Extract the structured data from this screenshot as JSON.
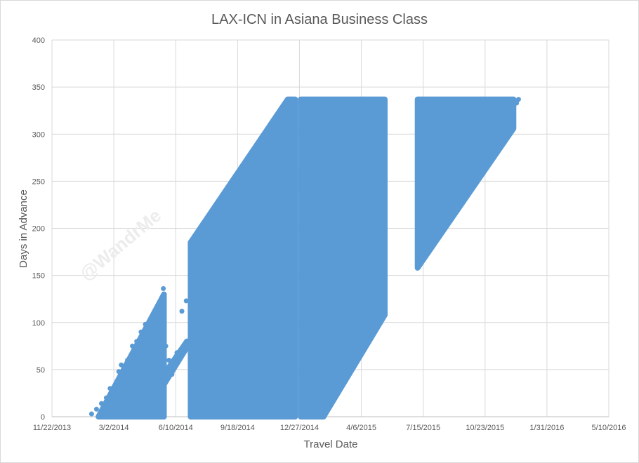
{
  "chart_data": {
    "type": "scatter",
    "title": "LAX-ICN in Asiana Business Class",
    "xlabel": "Travel Date",
    "ylabel": "Days in Advance",
    "watermark": "@WandrMe",
    "x_axis": {
      "type": "date",
      "min": "2013-11-22",
      "max": "2016-05-10",
      "ticks": [
        {
          "date": "2013-11-22",
          "label": "11/22/2013"
        },
        {
          "date": "2014-03-02",
          "label": "3/2/2014"
        },
        {
          "date": "2014-06-10",
          "label": "6/10/2014"
        },
        {
          "date": "2014-09-18",
          "label": "9/18/2014"
        },
        {
          "date": "2014-12-27",
          "label": "12/27/2014"
        },
        {
          "date": "2015-04-06",
          "label": "4/6/2015"
        },
        {
          "date": "2015-07-15",
          "label": "7/15/2015"
        },
        {
          "date": "2015-10-23",
          "label": "10/23/2015"
        },
        {
          "date": "2016-01-31",
          "label": "1/31/2016"
        },
        {
          "date": "2016-05-10",
          "label": "5/10/2016"
        }
      ]
    },
    "y_axis": {
      "min": 0,
      "max": 400,
      "ticks": [
        0,
        50,
        100,
        150,
        200,
        250,
        300,
        350,
        400
      ]
    },
    "grid": true,
    "legend": "none",
    "series_color": "#5b9bd5",
    "regions": [
      {
        "name": "main-parallelogram",
        "vertices": [
          [
            "2014-12-29",
            0
          ],
          [
            "2015-02-04",
            0
          ],
          [
            "2015-05-14",
            108
          ],
          [
            "2015-05-14",
            337
          ],
          [
            "2014-12-29",
            337
          ]
        ]
      },
      {
        "name": "late-2015-band",
        "vertices": [
          [
            "2015-07-06",
            158
          ],
          [
            "2015-07-06",
            337
          ],
          [
            "2015-12-08",
            337
          ],
          [
            "2015-12-08",
            306
          ]
        ]
      },
      {
        "name": "sep-2014-band",
        "vertices": [
          [
            "2014-07-04",
            0
          ],
          [
            "2014-12-20",
            0
          ],
          [
            "2014-12-20",
            337
          ],
          [
            "2014-12-08",
            337
          ],
          [
            "2014-07-04",
            185
          ]
        ]
      },
      {
        "name": "diagonal-ridge-upper",
        "vertices": [
          [
            "2014-07-04",
            80
          ],
          [
            "2014-07-14",
            80
          ],
          [
            "2014-12-20",
            245
          ],
          [
            "2014-12-20",
            260
          ]
        ]
      },
      {
        "name": "early-2014-triangle",
        "vertices": [
          [
            "2014-02-05",
            0
          ],
          [
            "2014-05-22",
            0
          ],
          [
            "2014-05-22",
            130
          ]
        ]
      },
      {
        "name": "spring-2014-diagonal",
        "vertices": [
          [
            "2014-04-05",
            0
          ],
          [
            "2014-04-20",
            0
          ],
          [
            "2014-07-04",
            80
          ],
          [
            "2014-06-28",
            80
          ]
        ]
      }
    ],
    "outliers": [
      [
        "2014-01-25",
        3
      ],
      [
        "2014-02-02",
        8
      ],
      [
        "2014-02-10",
        14
      ],
      [
        "2014-02-18",
        20
      ],
      [
        "2014-02-24",
        30
      ],
      [
        "2014-02-26",
        18
      ],
      [
        "2014-03-04",
        28
      ],
      [
        "2014-03-10",
        48
      ],
      [
        "2014-03-14",
        55
      ],
      [
        "2014-03-20",
        47
      ],
      [
        "2014-03-24",
        60
      ],
      [
        "2014-03-28",
        40
      ],
      [
        "2014-04-01",
        75
      ],
      [
        "2014-04-04",
        68
      ],
      [
        "2014-04-08",
        80
      ],
      [
        "2014-04-10",
        52
      ],
      [
        "2014-04-15",
        90
      ],
      [
        "2014-04-18",
        63
      ],
      [
        "2014-04-22",
        98
      ],
      [
        "2014-04-26",
        72
      ],
      [
        "2014-05-01",
        105
      ],
      [
        "2014-05-04",
        83
      ],
      [
        "2014-05-08",
        112
      ],
      [
        "2014-05-12",
        95
      ],
      [
        "2014-05-15",
        120
      ],
      [
        "2014-05-18",
        102
      ],
      [
        "2014-05-20",
        128
      ],
      [
        "2014-05-21",
        136
      ],
      [
        "2014-05-21",
        110
      ],
      [
        "2014-05-25",
        75
      ],
      [
        "2014-05-30",
        60
      ],
      [
        "2014-06-04",
        45
      ],
      [
        "2014-06-12",
        68
      ],
      [
        "2015-12-10",
        335
      ],
      [
        "2015-12-13",
        333
      ],
      [
        "2015-12-16",
        337
      ],
      [
        "2015-03-02",
        60
      ],
      [
        "2015-03-05",
        70
      ],
      [
        "2015-03-03",
        52
      ],
      [
        "2014-06-20",
        112
      ],
      [
        "2014-06-27",
        123
      ]
    ]
  }
}
